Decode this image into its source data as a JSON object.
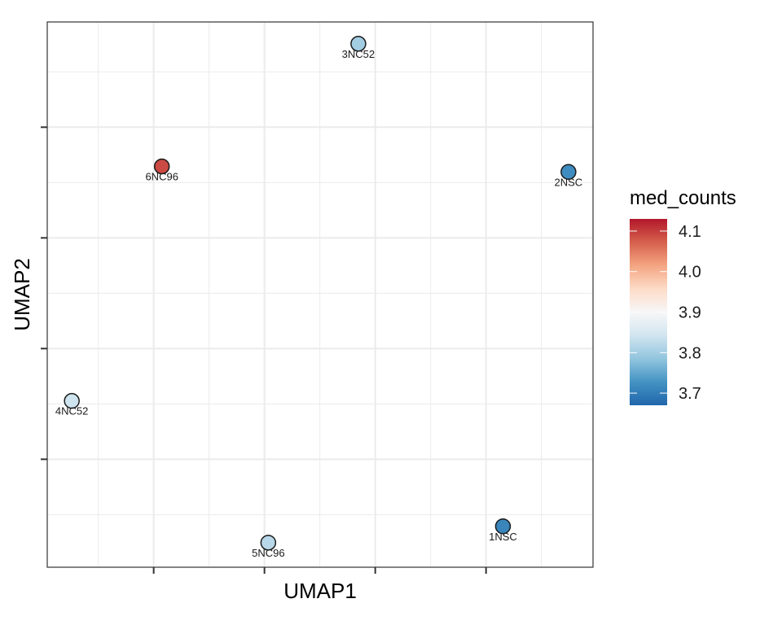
{
  "chart_data": {
    "type": "scatter",
    "title": "",
    "xlabel": "UMAP1",
    "ylabel": "UMAP2",
    "x_tick_labels_shown": false,
    "y_tick_labels_shown": false,
    "grid": true,
    "theme": "bw",
    "points": [
      {
        "label": "3NC52",
        "x": 0.57,
        "y": 0.96,
        "med_counts": 3.8
      },
      {
        "label": "6NC96",
        "x": 0.21,
        "y": 0.735,
        "med_counts": 4.09
      },
      {
        "label": "2NSC",
        "x": 0.955,
        "y": 0.725,
        "med_counts": 3.72
      },
      {
        "label": "4NC52",
        "x": 0.045,
        "y": 0.305,
        "med_counts": 3.84
      },
      {
        "label": "5NC96",
        "x": 0.405,
        "y": 0.045,
        "med_counts": 3.82
      },
      {
        "label": "1NSC",
        "x": 0.835,
        "y": 0.075,
        "med_counts": 3.71
      }
    ],
    "color_scale": {
      "name": "med_counts",
      "palette": "RdBu (reversed)",
      "min": 3.67,
      "max": 4.13,
      "stops": [
        "#2166AC",
        "#4393C3",
        "#92C5DE",
        "#D1E5F0",
        "#F7F7F7",
        "#FDDBC7",
        "#F4A582",
        "#D6604D",
        "#B2182B"
      ],
      "ticks": [
        {
          "value": 3.7,
          "label": "3.7"
        },
        {
          "value": 3.8,
          "label": "3.8"
        },
        {
          "value": 3.9,
          "label": "3.9"
        },
        {
          "value": 4.0,
          "label": "4.0"
        },
        {
          "value": 4.1,
          "label": "4.1"
        }
      ]
    },
    "legend_position": "right"
  }
}
